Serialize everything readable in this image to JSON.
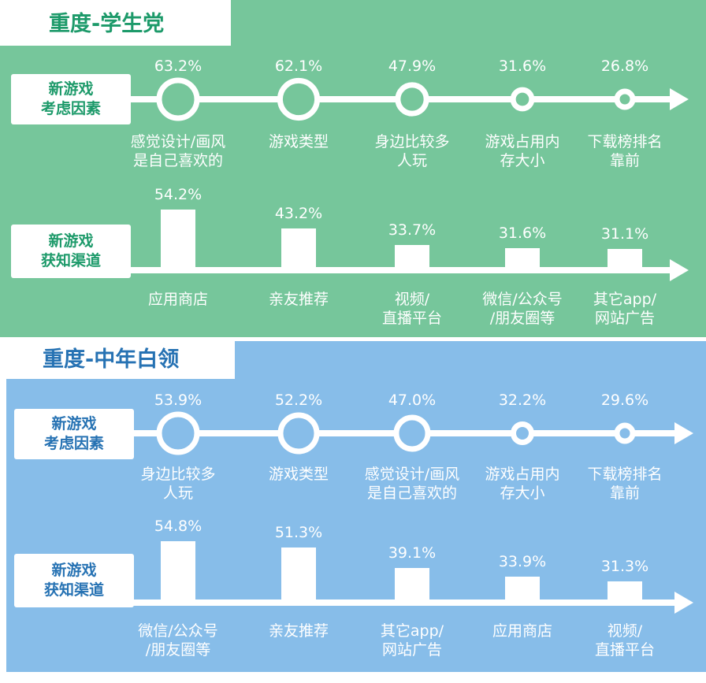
{
  "colors": {
    "student_bg": "#76c69b",
    "student_text": "#1d9a6a",
    "worker_bg": "#87bde9",
    "worker_text": "#2672b3"
  },
  "chart_data": [
    {
      "type": "bubble-line",
      "title": "重度-学生党",
      "row_label": [
        "新游戏",
        "考虑因素"
      ],
      "categories": [
        [
          "感觉设计/画风",
          "是自己喜欢的"
        ],
        [
          "游戏类型"
        ],
        [
          "身边比较多",
          "人玩"
        ],
        [
          "游戏占用内",
          "存大小"
        ],
        [
          "下载榜排名",
          "靠前"
        ]
      ],
      "values": [
        63.2,
        62.1,
        47.9,
        31.6,
        26.8
      ],
      "labels": [
        "63.2%",
        "62.1%",
        "47.9%",
        "31.6%",
        "26.8%"
      ]
    },
    {
      "type": "bar",
      "title": "重度-学生党",
      "row_label": [
        "新游戏",
        "获知渠道"
      ],
      "categories": [
        [
          "应用商店"
        ],
        [
          "亲友推荐"
        ],
        [
          "视频/",
          "直播平台"
        ],
        [
          "微信/公众号",
          "/朋友圈等"
        ],
        [
          "其它app/",
          "网站广告"
        ]
      ],
      "values": [
        54.2,
        43.2,
        33.7,
        31.6,
        31.1
      ],
      "labels": [
        "54.2%",
        "43.2%",
        "33.7%",
        "31.6%",
        "31.1%"
      ]
    },
    {
      "type": "bubble-line",
      "title": "重度-中年白领",
      "row_label": [
        "新游戏",
        "考虑因素"
      ],
      "categories": [
        [
          "身边比较多",
          "人玩"
        ],
        [
          "游戏类型"
        ],
        [
          "感觉设计/画风",
          "是自己喜欢的"
        ],
        [
          "游戏占用内",
          "存大小"
        ],
        [
          "下载榜排名",
          "靠前"
        ]
      ],
      "values": [
        53.9,
        52.2,
        47.0,
        32.2,
        29.6
      ],
      "labels": [
        "53.9%",
        "52.2%",
        "47.0%",
        "32.2%",
        "29.6%"
      ]
    },
    {
      "type": "bar",
      "title": "重度-中年白领",
      "row_label": [
        "新游戏",
        "获知渠道"
      ],
      "categories": [
        [
          "微信/公众号",
          "/朋友圈等"
        ],
        [
          "亲友推荐"
        ],
        [
          "其它app/",
          "网站广告"
        ],
        [
          "应用商店"
        ],
        [
          "视频/",
          "直播平台"
        ]
      ],
      "values": [
        54.8,
        51.3,
        39.1,
        33.9,
        31.3
      ],
      "labels": [
        "54.8%",
        "51.3%",
        "39.1%",
        "33.9%",
        "31.3%"
      ]
    }
  ]
}
